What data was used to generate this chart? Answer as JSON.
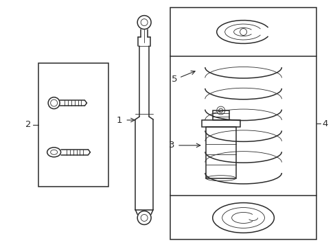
{
  "bg_color": "#ffffff",
  "line_color": "#2a2a2a",
  "line_width": 1.1,
  "thin_line": 0.6,
  "fig_w": 4.89,
  "fig_h": 3.6,
  "dpi": 100
}
